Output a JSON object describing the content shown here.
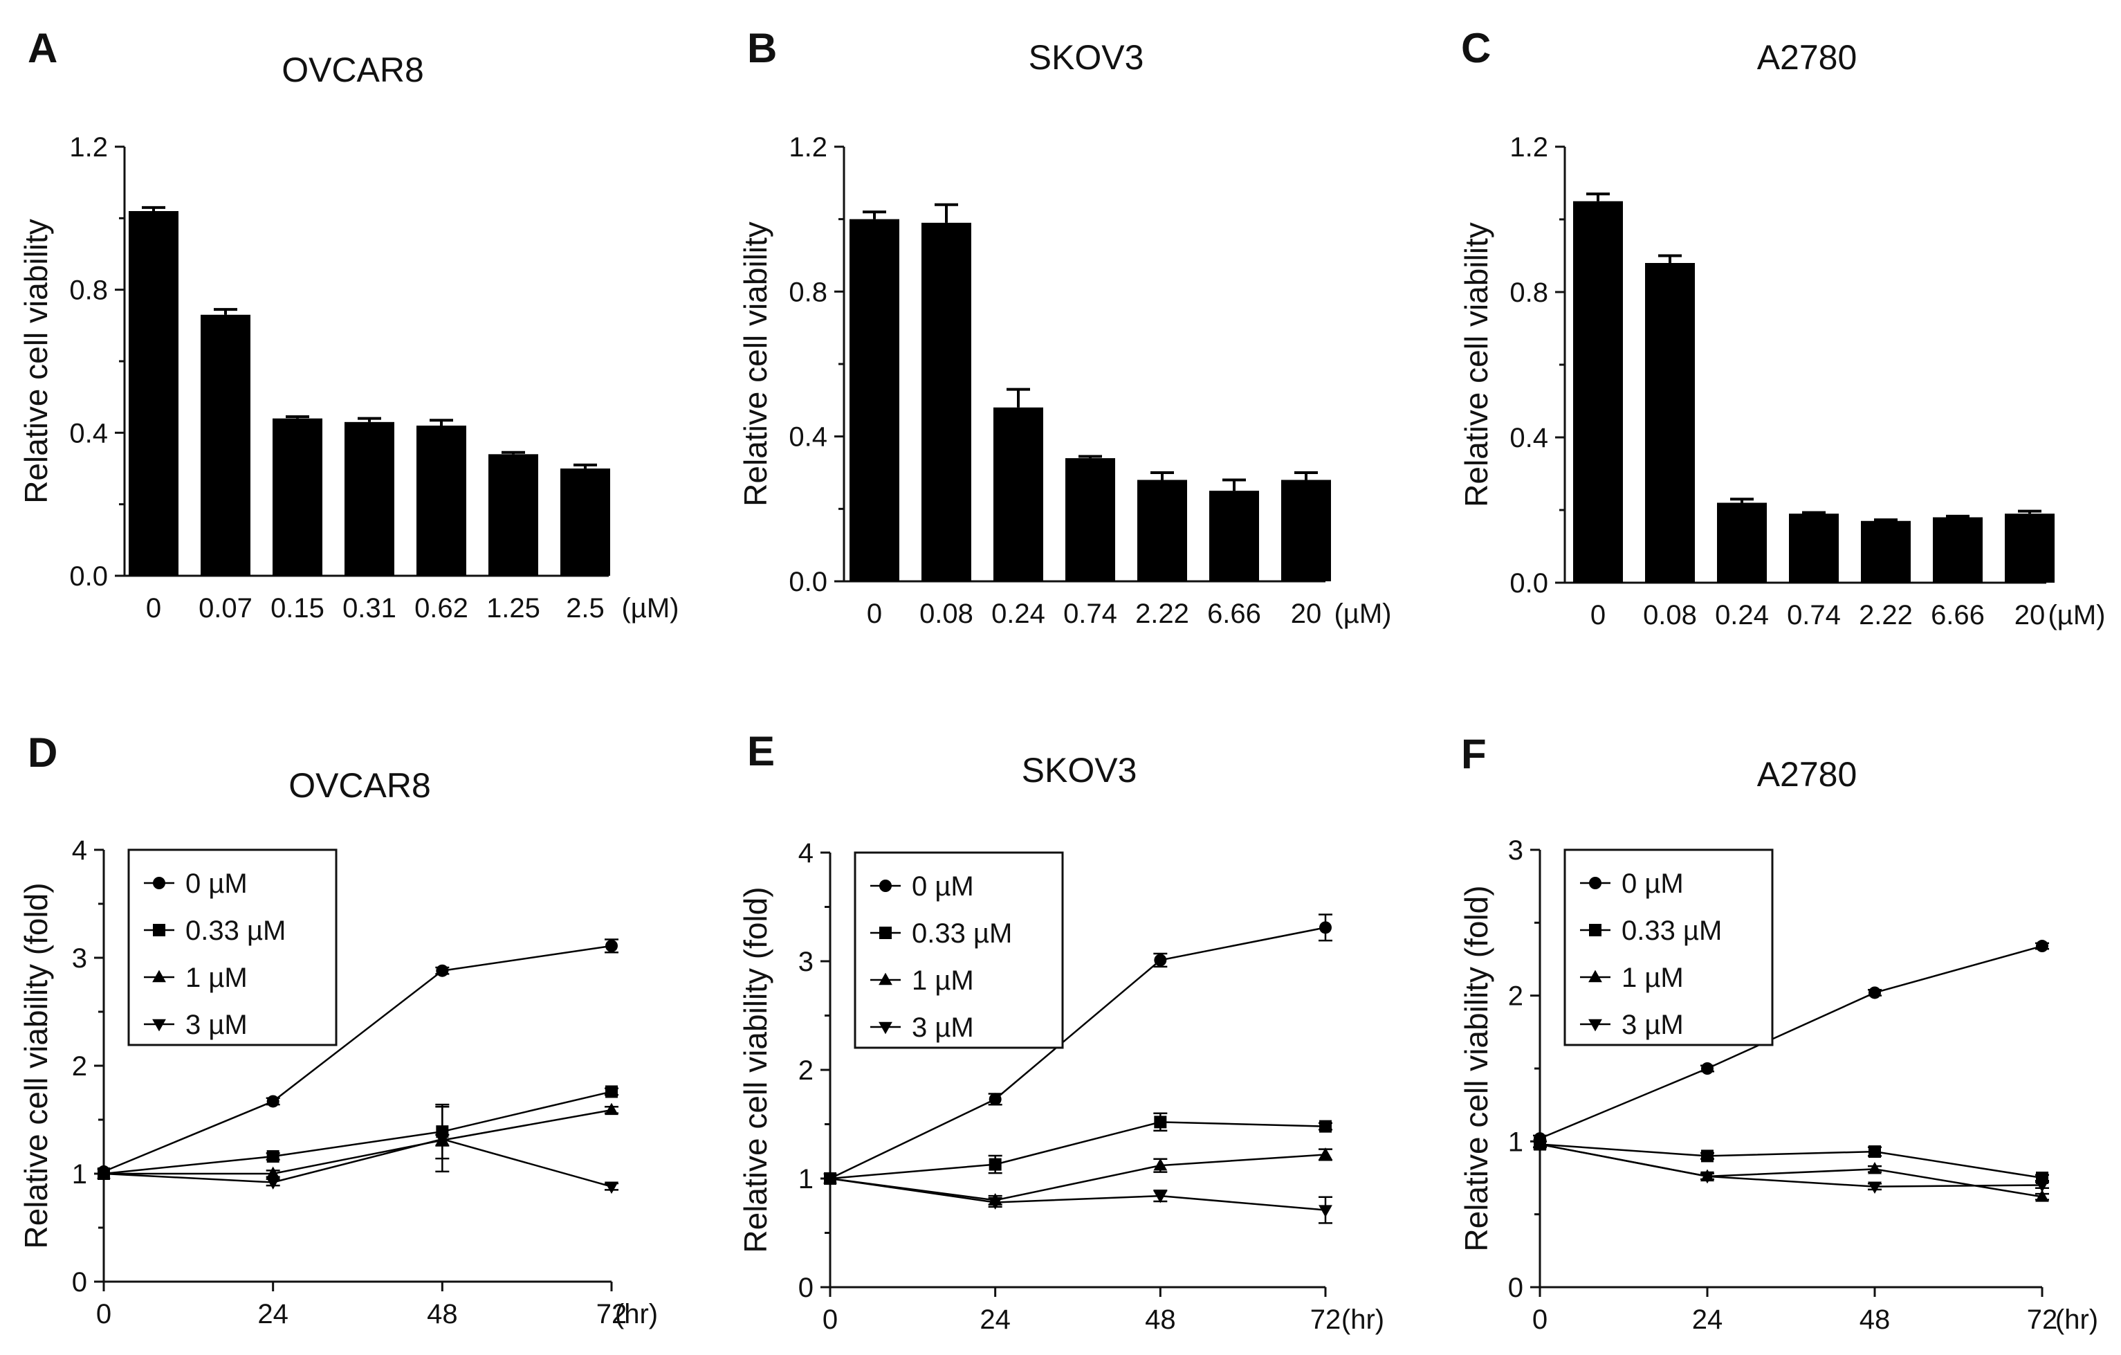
{
  "chart_data": [
    {
      "panel": "A",
      "type": "bar",
      "title": "OVCAR8",
      "ylabel": "Relative cell viability",
      "unit": "(µM)",
      "categories": [
        "0",
        "0.07",
        "0.15",
        "0.31",
        "0.62",
        "1.25",
        "2.5"
      ],
      "values": [
        1.02,
        0.73,
        0.44,
        0.43,
        0.42,
        0.34,
        0.3
      ],
      "errors": [
        0.01,
        0.015,
        0.005,
        0.01,
        0.015,
        0.005,
        0.01
      ],
      "ylim": [
        0,
        1.2
      ],
      "yticks": [
        "0.0",
        "0.4",
        "0.8",
        "1.2"
      ]
    },
    {
      "panel": "B",
      "type": "bar",
      "title": "SKOV3",
      "ylabel": "Relative cell viability",
      "unit": "(µM)",
      "categories": [
        "0",
        "0.08",
        "0.24",
        "0.74",
        "2.22",
        "6.66",
        "20"
      ],
      "values": [
        1.0,
        0.99,
        0.48,
        0.34,
        0.28,
        0.25,
        0.28
      ],
      "errors": [
        0.02,
        0.05,
        0.05,
        0.005,
        0.02,
        0.03,
        0.02
      ],
      "ylim": [
        0,
        1.2
      ],
      "yticks": [
        "0.0",
        "0.4",
        "0.8",
        "1.2"
      ]
    },
    {
      "panel": "C",
      "type": "bar",
      "title": "A2780",
      "ylabel": "Relative cell viability",
      "unit": "(µM)",
      "categories": [
        "0",
        "0.08",
        "0.24",
        "0.74",
        "2.22",
        "6.66",
        "20"
      ],
      "values": [
        1.05,
        0.88,
        0.22,
        0.19,
        0.17,
        0.18,
        0.19
      ],
      "errors": [
        0.02,
        0.02,
        0.01,
        0.003,
        0.003,
        0.003,
        0.007
      ],
      "ylim": [
        0,
        1.2
      ],
      "yticks": [
        "0.0",
        "0.4",
        "0.8",
        "1.2"
      ]
    },
    {
      "panel": "D",
      "type": "line",
      "title": "OVCAR8",
      "ylabel": "Relative cell viability (fold)",
      "unit": "(hr)",
      "x": [
        0,
        24,
        48,
        72
      ],
      "xticks": [
        "0",
        "24",
        "48",
        "72"
      ],
      "ylim": [
        0,
        4
      ],
      "yticks": [
        "0",
        "1",
        "2",
        "3",
        "4"
      ],
      "series": [
        {
          "name": "0 µM",
          "marker": "circle",
          "values": [
            1.02,
            1.67,
            2.88,
            3.11
          ],
          "errors": [
            0.02,
            0.03,
            0.03,
            0.06
          ]
        },
        {
          "name": "0.33 µM",
          "marker": "square",
          "values": [
            1.0,
            1.16,
            1.39,
            1.76
          ],
          "errors": [
            0.02,
            0.03,
            0.25,
            0.03
          ]
        },
        {
          "name": "1 µM",
          "marker": "triangle-up",
          "values": [
            1.0,
            1.0,
            1.31,
            1.59
          ],
          "errors": [
            0.02,
            0.03,
            0.05,
            0.03
          ]
        },
        {
          "name": "3 µM",
          "marker": "triangle-down",
          "values": [
            1.0,
            0.92,
            1.32,
            0.88
          ],
          "errors": [
            0.02,
            0.03,
            0.3,
            0.03
          ]
        }
      ]
    },
    {
      "panel": "E",
      "type": "line",
      "title": "SKOV3",
      "ylabel": "Relative cell viability (fold)",
      "unit": "(hr)",
      "x": [
        0,
        24,
        48,
        72
      ],
      "xticks": [
        "0",
        "24",
        "48",
        "72"
      ],
      "ylim": [
        0,
        4
      ],
      "yticks": [
        "0",
        "1",
        "2",
        "3",
        "4"
      ],
      "series": [
        {
          "name": "0 µM",
          "marker": "circle",
          "values": [
            1.0,
            1.73,
            3.01,
            3.31
          ],
          "errors": [
            0.02,
            0.05,
            0.06,
            0.12
          ]
        },
        {
          "name": "0.33 µM",
          "marker": "square",
          "values": [
            1.0,
            1.13,
            1.52,
            1.48
          ],
          "errors": [
            0.02,
            0.08,
            0.08,
            0.03
          ]
        },
        {
          "name": "1 µM",
          "marker": "triangle-up",
          "values": [
            1.0,
            0.8,
            1.12,
            1.22
          ],
          "errors": [
            0.02,
            0.04,
            0.06,
            0.05
          ]
        },
        {
          "name": "3 µM",
          "marker": "triangle-down",
          "values": [
            1.0,
            0.78,
            0.84,
            0.71
          ],
          "errors": [
            0.02,
            0.04,
            0.05,
            0.12
          ]
        }
      ]
    },
    {
      "panel": "F",
      "type": "line",
      "title": "A2780",
      "ylabel": "Relative cell viability (fold)",
      "unit": "(hr)",
      "x": [
        0,
        24,
        48,
        72
      ],
      "xticks": [
        "0",
        "24",
        "48",
        "72"
      ],
      "ylim": [
        0,
        3
      ],
      "yticks": [
        "0",
        "1",
        "2",
        "3"
      ],
      "series": [
        {
          "name": "0 µM",
          "marker": "circle",
          "values": [
            1.02,
            1.5,
            2.02,
            2.34
          ],
          "errors": [
            0.02,
            0.02,
            0.02,
            0.02
          ]
        },
        {
          "name": "0.33 µM",
          "marker": "square",
          "values": [
            0.98,
            0.9,
            0.93,
            0.75
          ],
          "errors": [
            0.02,
            0.02,
            0.03,
            0.02
          ]
        },
        {
          "name": "1 µM",
          "marker": "triangle-up",
          "values": [
            0.98,
            0.76,
            0.81,
            0.62
          ],
          "errors": [
            0.02,
            0.02,
            0.02,
            0.02
          ]
        },
        {
          "name": "3 µM",
          "marker": "triangle-down",
          "values": [
            0.98,
            0.76,
            0.69,
            0.7
          ],
          "errors": [
            0.02,
            0.02,
            0.02,
            0.02
          ]
        }
      ]
    }
  ]
}
